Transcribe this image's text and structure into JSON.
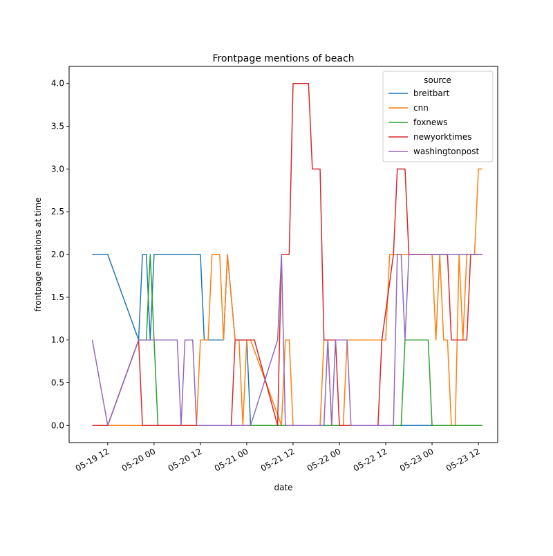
{
  "chart_data": {
    "type": "line",
    "title": "Frontpage mentions of beach",
    "xlabel": "date",
    "ylabel": "frontpage mentions at time",
    "xlim": [
      "2022-05-19 02:00",
      "2022-05-23 17:00"
    ],
    "ylim": [
      -0.2,
      4.2
    ],
    "x_ticks": [
      {
        "label": "05-19 12",
        "value": "2022-05-19 12:00"
      },
      {
        "label": "05-20 00",
        "value": "2022-05-20 00:00"
      },
      {
        "label": "05-20 12",
        "value": "2022-05-20 12:00"
      },
      {
        "label": "05-21 00",
        "value": "2022-05-21 00:00"
      },
      {
        "label": "05-21 12",
        "value": "2022-05-21 12:00"
      },
      {
        "label": "05-22 00",
        "value": "2022-05-22 00:00"
      },
      {
        "label": "05-22 12",
        "value": "2022-05-22 12:00"
      },
      {
        "label": "05-23 00",
        "value": "2022-05-23 00:00"
      },
      {
        "label": "05-23 12",
        "value": "2022-05-23 12:00"
      }
    ],
    "y_ticks": [
      "0.0",
      "0.5",
      "1.0",
      "1.5",
      "2.0",
      "2.5",
      "3.0",
      "3.5",
      "4.0"
    ],
    "grid": false,
    "legend": {
      "title": "source",
      "placement": "top-right"
    },
    "series": [
      {
        "name": "breitbart",
        "color": "#1f77b4",
        "points": [
          [
            "2022-05-19 08:00",
            2
          ],
          [
            "2022-05-19 12:00",
            2
          ],
          [
            "2022-05-19 20:00",
            1
          ],
          [
            "2022-05-19 21:00",
            2
          ],
          [
            "2022-05-19 22:00",
            2
          ],
          [
            "2022-05-19 23:00",
            1
          ],
          [
            "2022-05-20 00:00",
            2
          ],
          [
            "2022-05-20 12:00",
            2
          ],
          [
            "2022-05-20 13:00",
            1
          ],
          [
            "2022-05-20 18:00",
            1
          ],
          [
            "2022-05-20 19:00",
            2
          ],
          [
            "2022-05-20 21:00",
            1
          ],
          [
            "2022-05-21 00:00",
            1
          ],
          [
            "2022-05-21 01:00",
            0
          ],
          [
            "2022-05-21 11:00",
            0
          ],
          [
            "2022-05-23 12:00",
            0
          ]
        ]
      },
      {
        "name": "cnn",
        "color": "#ff7f0e",
        "points": [
          [
            "2022-05-19 08:00",
            0
          ],
          [
            "2022-05-20 11:00",
            0
          ],
          [
            "2022-05-20 12:00",
            1
          ],
          [
            "2022-05-20 14:00",
            1
          ],
          [
            "2022-05-20 15:00",
            2
          ],
          [
            "2022-05-20 17:00",
            2
          ],
          [
            "2022-05-20 18:00",
            1
          ],
          [
            "2022-05-20 19:00",
            2
          ],
          [
            "2022-05-20 21:00",
            1
          ],
          [
            "2022-05-20 22:00",
            1
          ],
          [
            "2022-05-20 23:00",
            0
          ],
          [
            "2022-05-21 00:00",
            1
          ],
          [
            "2022-05-21 01:00",
            1
          ],
          [
            "2022-05-21 09:00",
            0
          ],
          [
            "2022-05-21 10:00",
            1
          ],
          [
            "2022-05-21 11:00",
            1
          ],
          [
            "2022-05-21 12:00",
            0
          ],
          [
            "2022-05-21 19:00",
            0
          ],
          [
            "2022-05-21 20:00",
            1
          ],
          [
            "2022-05-21 21:00",
            1
          ],
          [
            "2022-05-21 22:00",
            0
          ],
          [
            "2022-05-22 01:00",
            0
          ],
          [
            "2022-05-22 02:00",
            1
          ],
          [
            "2022-05-22 12:00",
            1
          ],
          [
            "2022-05-22 13:00",
            2
          ],
          [
            "2022-05-23 00:00",
            2
          ],
          [
            "2022-05-23 01:00",
            1
          ],
          [
            "2022-05-23 02:00",
            2
          ],
          [
            "2022-05-23 03:00",
            1
          ],
          [
            "2022-05-23 04:00",
            1
          ],
          [
            "2022-05-23 05:00",
            0
          ],
          [
            "2022-05-23 06:00",
            0
          ],
          [
            "2022-05-23 07:00",
            2
          ],
          [
            "2022-05-23 08:00",
            1
          ],
          [
            "2022-05-23 09:00",
            2
          ],
          [
            "2022-05-23 11:00",
            2
          ],
          [
            "2022-05-23 12:00",
            3
          ],
          [
            "2022-05-23 13:00",
            3
          ]
        ]
      },
      {
        "name": "foxnews",
        "color": "#2ca02c",
        "points": [
          [
            "2022-05-19 08:00",
            0
          ],
          [
            "2022-05-19 12:00",
            0
          ],
          [
            "2022-05-19 20:00",
            1
          ],
          [
            "2022-05-19 22:00",
            1
          ],
          [
            "2022-05-19 23:00",
            2
          ],
          [
            "2022-05-20 01:00",
            0
          ],
          [
            "2022-05-22 16:00",
            0
          ],
          [
            "2022-05-22 17:00",
            1
          ],
          [
            "2022-05-22 23:00",
            1
          ],
          [
            "2022-05-23 00:00",
            0
          ],
          [
            "2022-05-23 13:00",
            0
          ]
        ]
      },
      {
        "name": "newyorktimes",
        "color": "#d62728",
        "points": [
          [
            "2022-05-19 08:00",
            0
          ],
          [
            "2022-05-19 12:00",
            0
          ],
          [
            "2022-05-19 20:00",
            1
          ],
          [
            "2022-05-19 21:00",
            0
          ],
          [
            "2022-05-20 20:00",
            0
          ],
          [
            "2022-05-20 21:00",
            1
          ],
          [
            "2022-05-21 02:00",
            1
          ],
          [
            "2022-05-21 08:00",
            0
          ],
          [
            "2022-05-21 09:00",
            2
          ],
          [
            "2022-05-21 11:00",
            2
          ],
          [
            "2022-05-21 12:00",
            4
          ],
          [
            "2022-05-21 16:00",
            4
          ],
          [
            "2022-05-21 17:00",
            3
          ],
          [
            "2022-05-21 19:00",
            3
          ],
          [
            "2022-05-21 20:00",
            1
          ],
          [
            "2022-05-21 22:00",
            1
          ],
          [
            "2022-05-21 23:00",
            1
          ],
          [
            "2022-05-22 00:00",
            0
          ],
          [
            "2022-05-22 10:00",
            0
          ],
          [
            "2022-05-22 11:00",
            1
          ],
          [
            "2022-05-22 14:00",
            2
          ],
          [
            "2022-05-22 15:00",
            3
          ],
          [
            "2022-05-22 17:00",
            3
          ],
          [
            "2022-05-22 18:00",
            2
          ],
          [
            "2022-05-23 04:00",
            2
          ],
          [
            "2022-05-23 05:00",
            1
          ],
          [
            "2022-05-23 09:00",
            1
          ],
          [
            "2022-05-23 10:00",
            2
          ],
          [
            "2022-05-23 13:00",
            2
          ]
        ]
      },
      {
        "name": "washingtonpost",
        "color": "#9467bd",
        "points": [
          [
            "2022-05-19 08:00",
            1
          ],
          [
            "2022-05-19 12:00",
            0
          ],
          [
            "2022-05-19 20:00",
            1
          ],
          [
            "2022-05-20 06:00",
            1
          ],
          [
            "2022-05-20 07:00",
            0
          ],
          [
            "2022-05-20 08:00",
            1
          ],
          [
            "2022-05-20 10:00",
            1
          ],
          [
            "2022-05-20 11:00",
            0
          ],
          [
            "2022-05-21 01:00",
            0
          ],
          [
            "2022-05-21 08:00",
            1
          ],
          [
            "2022-05-21 09:00",
            2
          ],
          [
            "2022-05-21 10:00",
            0
          ],
          [
            "2022-05-21 20:00",
            0
          ],
          [
            "2022-05-21 21:00",
            1
          ],
          [
            "2022-05-21 22:00",
            0
          ],
          [
            "2022-05-21 23:00",
            1
          ],
          [
            "2022-05-22 02:00",
            1
          ],
          [
            "2022-05-22 03:00",
            0
          ],
          [
            "2022-05-22 14:00",
            0
          ],
          [
            "2022-05-22 15:00",
            2
          ],
          [
            "2022-05-22 16:00",
            2
          ],
          [
            "2022-05-22 17:00",
            1
          ],
          [
            "2022-05-22 18:00",
            2
          ],
          [
            "2022-05-23 13:00",
            2
          ]
        ]
      }
    ]
  }
}
